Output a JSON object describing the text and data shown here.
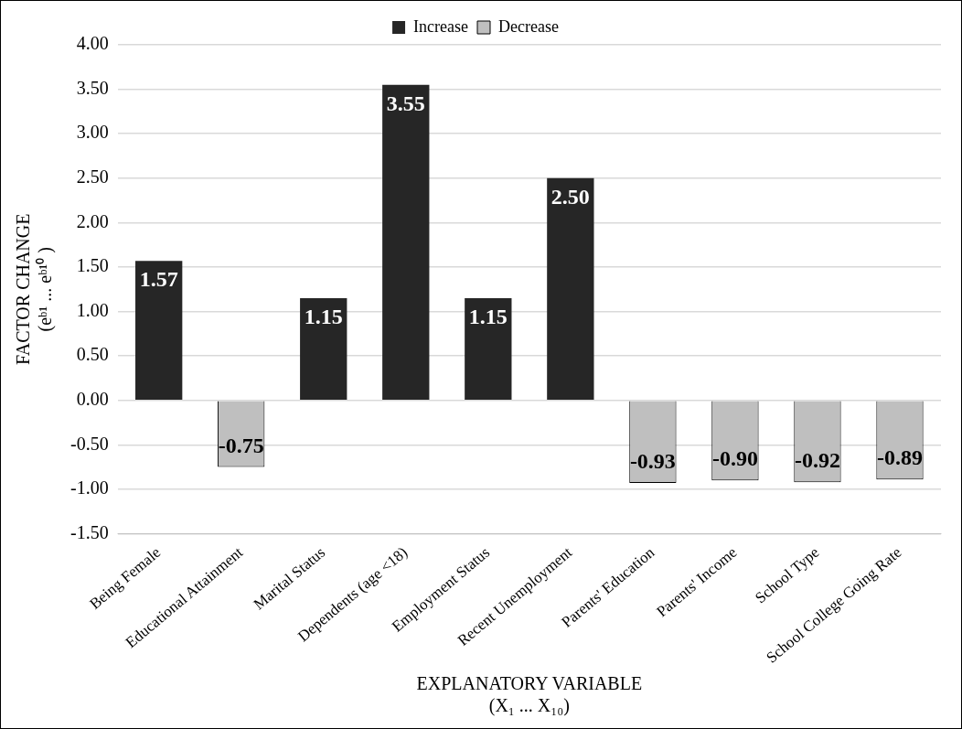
{
  "chart_data": {
    "type": "bar",
    "xlabel": "EXPLANATORY VARIABLE\n(X₁ ... X₁₀)",
    "ylabel": "FACTOR CHANGE\n(eᵇ¹ ... eᵇ¹⁰ )",
    "categories": [
      "Being Female",
      "Educational Attainment",
      "Marital Status",
      "Dependents (age <18)",
      "Employment Status",
      "Recent Unemployment",
      "Parents' Education",
      "Parents' Income",
      "School Type",
      "School College Going Rate"
    ],
    "series": [
      {
        "name": "Increase",
        "color": "#262626",
        "values": [
          1.57,
          null,
          1.15,
          3.55,
          1.15,
          2.5,
          null,
          null,
          null,
          null
        ],
        "value_labels": [
          "1.57",
          null,
          "1.15",
          "3.55",
          "1.15",
          "2.50",
          null,
          null,
          null,
          null
        ]
      },
      {
        "name": "Decrease",
        "color": "#bfbfbf",
        "values": [
          null,
          -0.75,
          null,
          null,
          null,
          null,
          -0.93,
          -0.9,
          -0.92,
          -0.89
        ],
        "value_labels": [
          null,
          "-0.75",
          null,
          null,
          null,
          null,
          "-0.93",
          "-0.90",
          "-0.92",
          "-0.89"
        ]
      }
    ],
    "ylim": [
      -1.5,
      4.0
    ],
    "yticks": [
      {
        "value": -1.5,
        "label": "-1.50"
      },
      {
        "value": -1,
        "label": "-1.00"
      },
      {
        "value": -0.5,
        "label": "-0.50"
      },
      {
        "value": 0,
        "label": "0.00"
      },
      {
        "value": 0.5,
        "label": "0.50"
      },
      {
        "value": 1,
        "label": "1.00"
      },
      {
        "value": 1.5,
        "label": "1.50"
      },
      {
        "value": 2,
        "label": "2.00"
      },
      {
        "value": 2.5,
        "label": "2.50"
      },
      {
        "value": 3,
        "label": "3.00"
      },
      {
        "value": 3.5,
        "label": "3.50"
      },
      {
        "value": 4,
        "label": "4.00"
      }
    ],
    "grid": "y",
    "legend": "top"
  }
}
